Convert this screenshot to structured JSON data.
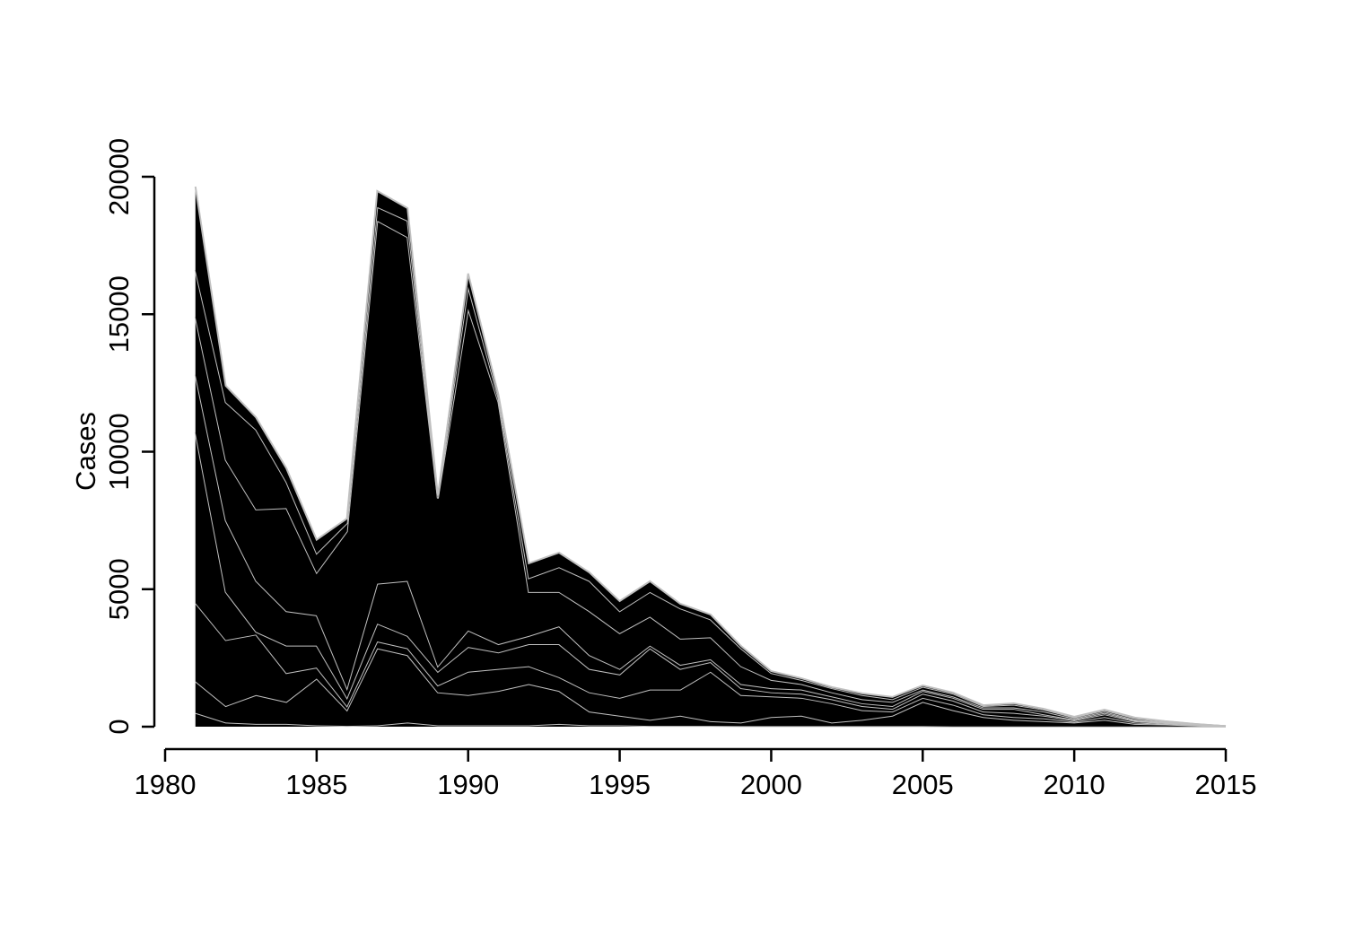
{
  "chart_data": {
    "type": "stacked_area",
    "y_label": "Cases",
    "edge_color": "#c0c0c0",
    "x": [
      1981,
      1982,
      1983,
      1984,
      1985,
      1986,
      1987,
      1988,
      1989,
      1990,
      1991,
      1992,
      1993,
      1994,
      1995,
      1996,
      1997,
      1998,
      1999,
      2000,
      2001,
      2002,
      2003,
      2004,
      2005,
      2006,
      2007,
      2008,
      2009,
      2010,
      2011,
      2012,
      2013,
      2014,
      2015
    ],
    "xlim": [
      1980,
      2015
    ],
    "xticks": [
      1980,
      1985,
      1990,
      1995,
      2000,
      2005,
      2010,
      2015
    ],
    "ylim": [
      0,
      20000
    ],
    "yticks": [
      0,
      5000,
      10000,
      15000,
      20000
    ],
    "series": [
      {
        "color": "#000000",
        "values": [
          500,
          150,
          100,
          100,
          50,
          30,
          50,
          150,
          50,
          50,
          50,
          50,
          100,
          50,
          50,
          30,
          30,
          30,
          20,
          20,
          20,
          20,
          20,
          20,
          20,
          10,
          10,
          10,
          10,
          10,
          10,
          10,
          10,
          5,
          5
        ]
      },
      {
        "color": "#000000",
        "values": [
          1150,
          600,
          1050,
          800,
          1700,
          570,
          2800,
          2450,
          1200,
          1100,
          1250,
          1500,
          1200,
          500,
          350,
          220,
          370,
          170,
          130,
          330,
          380,
          130,
          230,
          380,
          880,
          590,
          340,
          240,
          190,
          140,
          240,
          90,
          70,
          35,
          5
        ]
      },
      {
        "color": "#000000",
        "values": [
          2850,
          2400,
          2200,
          1050,
          400,
          150,
          250,
          250,
          250,
          850,
          800,
          650,
          500,
          700,
          650,
          1100,
          950,
          1800,
          1000,
          750,
          650,
          700,
          350,
          150,
          150,
          200,
          100,
          100,
          100,
          30,
          100,
          50,
          20,
          10,
          5
        ]
      },
      {
        "color": "#000000",
        "values": [
          6200,
          1750,
          100,
          1000,
          800,
          300,
          650,
          450,
          500,
          900,
          600,
          800,
          1200,
          850,
          850,
          1500,
          750,
          350,
          250,
          150,
          150,
          150,
          150,
          100,
          150,
          150,
          100,
          150,
          100,
          50,
          100,
          50,
          30,
          20,
          3
        ]
      },
      {
        "color": "#000000",
        "values": [
          2100,
          2600,
          1850,
          1250,
          1100,
          350,
          1450,
          2000,
          200,
          600,
          300,
          300,
          650,
          500,
          200,
          100,
          150,
          100,
          150,
          150,
          150,
          100,
          100,
          100,
          100,
          100,
          100,
          150,
          50,
          30,
          50,
          30,
          20,
          10,
          1
        ]
      },
      {
        "color": "#000000",
        "values": [
          2100,
          2200,
          2600,
          3750,
          1550,
          5700,
          13200,
          12500,
          6100,
          11700,
          8800,
          1600,
          1250,
          1600,
          1300,
          1050,
          950,
          800,
          650,
          300,
          200,
          150,
          150,
          150,
          50,
          50,
          50,
          50,
          100,
          40,
          50,
          30,
          20,
          5,
          1
        ]
      },
      {
        "color": "#000000",
        "values": [
          1700,
          2100,
          2900,
          950,
          700,
          300,
          500,
          600,
          20,
          800,
          150,
          500,
          900,
          1100,
          800,
          900,
          1100,
          650,
          650,
          250,
          150,
          150,
          150,
          100,
          100,
          100,
          50,
          100,
          70,
          40,
          50,
          50,
          20,
          10,
          0
        ]
      },
      {
        "color": "#000000",
        "values": [
          3040,
          600,
          450,
          500,
          500,
          170,
          580,
          460,
          80,
          480,
          120,
          540,
          530,
          310,
          370,
          390,
          170,
          180,
          90,
          70,
          60,
          40,
          60,
          80,
          50,
          40,
          30,
          50,
          30,
          20,
          20,
          20,
          10,
          5,
          0
        ]
      }
    ]
  }
}
